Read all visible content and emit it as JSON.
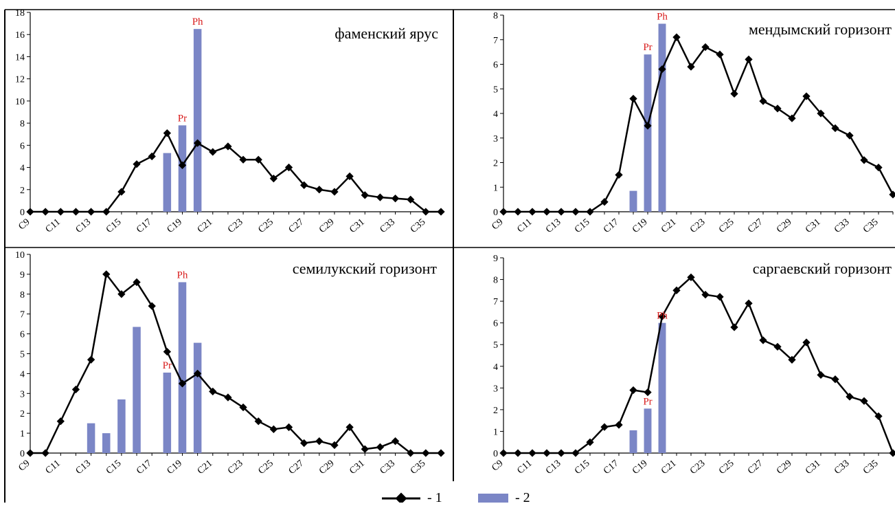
{
  "figure": {
    "legend": [
      {
        "kind": "line-marker",
        "label": "- 1",
        "color": "#000000"
      },
      {
        "kind": "bar",
        "label": "- 2",
        "color": "#7b86c6"
      }
    ]
  },
  "colors": {
    "line": "#000000",
    "bar": "#7b86c6",
    "annotation": "#d81b1b"
  },
  "chart_data": [
    {
      "type": "bar+line",
      "title": "фаменский ярус",
      "categories": [
        "C9",
        "C10",
        "C11",
        "C12",
        "C13",
        "C14",
        "C15",
        "C16",
        "C17",
        "C18",
        "C19",
        "C20",
        "C21",
        "C22",
        "C23",
        "C24",
        "C25",
        "C26",
        "C27",
        "C28",
        "C29",
        "C30",
        "C31",
        "C32",
        "C33",
        "C34",
        "C35",
        "C36"
      ],
      "xtick_labels": [
        "C9",
        "C11",
        "C13",
        "C15",
        "C17",
        "C19",
        "C21",
        "C23",
        "C25",
        "C27",
        "C29",
        "C31",
        "C33",
        "C35"
      ],
      "ylim": [
        0,
        18
      ],
      "yticks": [
        0,
        2,
        4,
        6,
        8,
        10,
        12,
        14,
        16,
        18
      ],
      "series": [
        {
          "values": [
            0,
            0,
            0,
            0,
            0,
            0,
            1.8,
            4.3,
            5.0,
            7.1,
            4.2,
            6.2,
            5.4,
            5.9,
            4.7,
            4.7,
            3.0,
            4.0,
            2.4,
            2.0,
            1.8,
            3.2,
            1.5,
            1.3,
            1.2,
            1.1,
            0,
            0
          ]
        },
        {
          "values": [
            null,
            null,
            null,
            null,
            null,
            null,
            null,
            null,
            null,
            5.3,
            7.8,
            16.5,
            null,
            null,
            null,
            null,
            null,
            null,
            null,
            null,
            null,
            null,
            null,
            null,
            null,
            null,
            null,
            null
          ]
        }
      ],
      "annotations": [
        {
          "text": "Pr",
          "category": "C19",
          "value": 7.8
        },
        {
          "text": "Ph",
          "category": "C20",
          "value": 16.5
        }
      ]
    },
    {
      "type": "bar+line",
      "title": "мендымский горизонт",
      "categories": [
        "C9",
        "C10",
        "C11",
        "C12",
        "C13",
        "C14",
        "C15",
        "C16",
        "C17",
        "C18",
        "C19",
        "C20",
        "C21",
        "C22",
        "C23",
        "C24",
        "C25",
        "C26",
        "C27",
        "C28",
        "C29",
        "C30",
        "C31",
        "C32",
        "C33",
        "C34",
        "C35",
        "C36"
      ],
      "xtick_labels": [
        "C9",
        "C11",
        "C13",
        "C15",
        "C17",
        "C19",
        "C21",
        "C23",
        "C25",
        "C27",
        "C29",
        "C31",
        "C33",
        "C35"
      ],
      "ylim": [
        0,
        8
      ],
      "yticks": [
        0,
        1,
        2,
        3,
        4,
        5,
        6,
        7,
        8
      ],
      "series": [
        {
          "values": [
            0,
            0,
            0,
            0,
            0,
            0,
            0,
            0.4,
            1.5,
            4.6,
            3.5,
            5.8,
            7.1,
            5.9,
            6.7,
            6.4,
            4.8,
            6.2,
            4.5,
            4.2,
            3.8,
            4.7,
            4.0,
            3.4,
            3.1,
            2.1,
            1.8,
            0.7
          ]
        },
        {
          "values": [
            null,
            null,
            null,
            null,
            null,
            null,
            null,
            null,
            null,
            0.85,
            6.4,
            7.65,
            null,
            null,
            null,
            null,
            null,
            null,
            null,
            null,
            null,
            null,
            null,
            null,
            null,
            null,
            null,
            null
          ]
        }
      ],
      "annotations": [
        {
          "text": "Pr",
          "category": "C19",
          "value": 6.4
        },
        {
          "text": "Ph",
          "category": "C20",
          "value": 7.65
        }
      ]
    },
    {
      "type": "bar+line",
      "title": "семилукский  горизонт",
      "categories": [
        "C9",
        "C10",
        "C11",
        "C12",
        "C13",
        "C14",
        "C15",
        "C16",
        "C17",
        "C18",
        "C19",
        "C20",
        "C21",
        "C22",
        "C23",
        "C24",
        "C25",
        "C26",
        "C27",
        "C28",
        "C29",
        "C30",
        "C31",
        "C32",
        "C33",
        "C34",
        "C35",
        "C36"
      ],
      "xtick_labels": [
        "C9",
        "C11",
        "C13",
        "C15",
        "C17",
        "C19",
        "C21",
        "C23",
        "C25",
        "C27",
        "C29",
        "C31",
        "C33",
        "C35"
      ],
      "ylim": [
        0,
        10
      ],
      "yticks": [
        0,
        1,
        2,
        3,
        4,
        5,
        6,
        7,
        8,
        9,
        10
      ],
      "series": [
        {
          "values": [
            0,
            0,
            1.6,
            3.2,
            4.7,
            9.0,
            8.0,
            8.6,
            7.4,
            5.1,
            3.5,
            4.0,
            3.1,
            2.8,
            2.3,
            1.6,
            1.2,
            1.3,
            0.5,
            0.6,
            0.4,
            1.3,
            0.2,
            0.3,
            0.6,
            0,
            0,
            0
          ]
        },
        {
          "values": [
            null,
            null,
            null,
            null,
            1.5,
            1.0,
            2.7,
            6.35,
            null,
            4.05,
            8.6,
            5.55,
            null,
            null,
            null,
            null,
            null,
            null,
            null,
            null,
            null,
            null,
            null,
            null,
            null,
            null,
            null,
            null
          ]
        }
      ],
      "annotations": [
        {
          "text": "Pr",
          "category": "C18",
          "value": 4.05
        },
        {
          "text": "Ph",
          "category": "C19",
          "value": 8.6
        }
      ]
    },
    {
      "type": "bar+line",
      "title": "саргаевский горизонт",
      "categories": [
        "C9",
        "C10",
        "C11",
        "C12",
        "C13",
        "C14",
        "C15",
        "C16",
        "C17",
        "C18",
        "C19",
        "C20",
        "C21",
        "C22",
        "C23",
        "C24",
        "C25",
        "C26",
        "C27",
        "C28",
        "C29",
        "C30",
        "C31",
        "C32",
        "C33",
        "C34",
        "C35",
        "C36"
      ],
      "xtick_labels": [
        "C9",
        "C11",
        "C13",
        "C15",
        "C17",
        "C19",
        "C21",
        "C23",
        "C25",
        "C27",
        "C29",
        "C31",
        "C33",
        "C35"
      ],
      "ylim": [
        0,
        9
      ],
      "yticks": [
        0,
        1,
        2,
        3,
        4,
        5,
        6,
        7,
        8,
        9
      ],
      "series": [
        {
          "values": [
            0,
            0,
            0,
            0,
            0,
            0,
            0.5,
            1.2,
            1.3,
            2.9,
            2.8,
            6.3,
            7.5,
            8.1,
            7.3,
            7.2,
            5.8,
            6.9,
            5.2,
            4.9,
            4.3,
            5.1,
            3.6,
            3.4,
            2.6,
            2.4,
            1.7,
            0
          ]
        },
        {
          "values": [
            null,
            null,
            null,
            null,
            null,
            null,
            null,
            null,
            null,
            1.05,
            2.05,
            6.0,
            null,
            null,
            null,
            null,
            null,
            null,
            null,
            null,
            null,
            null,
            null,
            null,
            null,
            null,
            null,
            null
          ]
        }
      ],
      "annotations": [
        {
          "text": "Pr",
          "category": "C19",
          "value": 2.05
        },
        {
          "text": "Ph",
          "category": "C20",
          "value": 6.0
        }
      ]
    }
  ]
}
